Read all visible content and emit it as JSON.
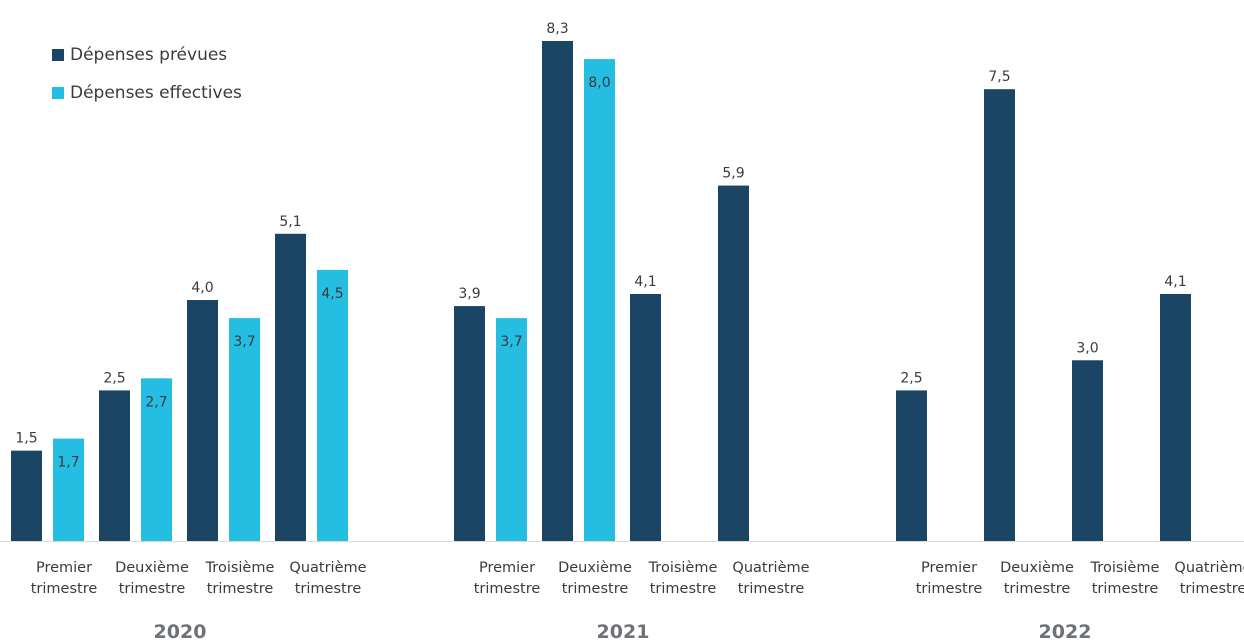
{
  "legend": {
    "planned": "Dépenses prévues",
    "actual": "Dépenses effectives"
  },
  "colors": {
    "planned": "#1b4565",
    "actual": "#26bde2",
    "axis": "#d9d9d9",
    "text": "#3b3b3b",
    "year_text": "#6e7278"
  },
  "chart_data": {
    "type": "bar",
    "ylim": [
      0,
      8.3
    ],
    "value_format": "comma-decimal-1",
    "groups": [
      {
        "year": "2020",
        "categories": [
          [
            "Premier",
            "trimestre"
          ],
          [
            "Deuxième",
            "trimestre"
          ],
          [
            "Troisième",
            "trimestre"
          ],
          [
            "Quatrième",
            "trimestre"
          ]
        ],
        "series": [
          {
            "name": "Dépenses prévues",
            "values": [
              1.5,
              2.5,
              4.0,
              5.1
            ]
          },
          {
            "name": "Dépenses effectives",
            "values": [
              1.7,
              2.7,
              3.7,
              4.5
            ]
          }
        ]
      },
      {
        "year": "2021",
        "categories": [
          [
            "Premier",
            "trimestre"
          ],
          [
            "Deuxième",
            "trimestre"
          ],
          [
            "Troisième",
            "trimestre"
          ],
          [
            "Quatrième",
            "trimestre"
          ]
        ],
        "series": [
          {
            "name": "Dépenses prévues",
            "values": [
              3.9,
              8.3,
              4.1,
              5.9
            ]
          },
          {
            "name": "Dépenses effectives",
            "values": [
              3.7,
              8.0,
              null,
              null
            ]
          }
        ]
      },
      {
        "year": "2022",
        "categories": [
          [
            "Premier",
            "trimestre"
          ],
          [
            "Deuxième",
            "trimestre"
          ],
          [
            "Troisième",
            "trimestre"
          ],
          [
            "Quatrième",
            "trimestre"
          ]
        ],
        "series": [
          {
            "name": "Dépenses prévues",
            "values": [
              2.5,
              7.5,
              3.0,
              4.1
            ]
          },
          {
            "name": "Dépenses effectives",
            "values": [
              null,
              null,
              null,
              null
            ]
          }
        ]
      }
    ]
  }
}
